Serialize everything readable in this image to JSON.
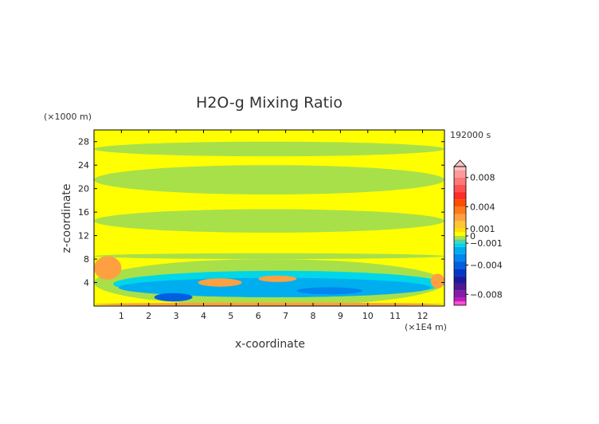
{
  "chart_data": {
    "type": "heatmap",
    "title": "H2O-g Mixing Ratio",
    "time_label": "192000 s",
    "xlabel": "x-coordinate",
    "ylabel": "z-coordinate",
    "x_unit": "(×1E4 m)",
    "y_unit": "(×1000 m)",
    "xlim": [
      0,
      12.8
    ],
    "ylim": [
      0,
      30
    ],
    "x_ticks": [
      "1",
      "2",
      "3",
      "4",
      "5",
      "6",
      "7",
      "8",
      "9",
      "10",
      "11",
      "12"
    ],
    "y_ticks": [
      "4",
      "8",
      "12",
      "16",
      "20",
      "24",
      "28"
    ],
    "colorbar": {
      "range": [
        -0.0095,
        0.0095
      ],
      "tick_labels": [
        "0.008",
        "0.004",
        "0.001",
        "0",
        "−0.001",
        "−0.004",
        "−0.008"
      ],
      "tick_values": [
        0.008,
        0.004,
        0.001,
        0,
        -0.001,
        -0.004,
        -0.008
      ],
      "levels": [
        {
          "lo": 0.009,
          "hi": 0.0095,
          "color": "#ffc4c4"
        },
        {
          "lo": 0.008,
          "hi": 0.009,
          "color": "#ff9a9a"
        },
        {
          "lo": 0.007,
          "hi": 0.008,
          "color": "#ff7777"
        },
        {
          "lo": 0.006,
          "hi": 0.007,
          "color": "#ff4f4f"
        },
        {
          "lo": 0.005,
          "hi": 0.006,
          "color": "#ff2a2a"
        },
        {
          "lo": 0.004,
          "hi": 0.005,
          "color": "#ff4d00"
        },
        {
          "lo": 0.003,
          "hi": 0.004,
          "color": "#ff7a1a"
        },
        {
          "lo": 0.002,
          "hi": 0.003,
          "color": "#ffa040"
        },
        {
          "lo": 0.001,
          "hi": 0.002,
          "color": "#ffc830"
        },
        {
          "lo": 0.0005,
          "hi": 0.001,
          "color": "#ffe100"
        },
        {
          "lo": 0.0,
          "hi": 0.0005,
          "color": "#ffff00"
        },
        {
          "lo": -0.0005,
          "hi": 0.0,
          "color": "#a8e04a"
        },
        {
          "lo": -0.001,
          "hi": -0.0005,
          "color": "#55d3a0"
        },
        {
          "lo": -0.0015,
          "hi": -0.001,
          "color": "#00d6e8"
        },
        {
          "lo": -0.0025,
          "hi": -0.0015,
          "color": "#00aef0"
        },
        {
          "lo": -0.0035,
          "hi": -0.0025,
          "color": "#0086f0"
        },
        {
          "lo": -0.0045,
          "hi": -0.0035,
          "color": "#005fe0"
        },
        {
          "lo": -0.0055,
          "hi": -0.0045,
          "color": "#0038c8"
        },
        {
          "lo": -0.0065,
          "hi": -0.0055,
          "color": "#1a1aa0"
        },
        {
          "lo": -0.0075,
          "hi": -0.0065,
          "color": "#4b1a90"
        },
        {
          "lo": -0.0085,
          "hi": -0.0075,
          "color": "#8a1aa8"
        },
        {
          "lo": -0.009,
          "hi": -0.0085,
          "color": "#c51ac0"
        },
        {
          "lo": -0.0095,
          "hi": -0.009,
          "color": "#ff4fd0"
        }
      ]
    },
    "base_color": "#ffff00",
    "regions": [
      {
        "x": [
          0,
          12.8
        ],
        "z": [
          25.5,
          28
        ],
        "color": "#a8e04a"
      },
      {
        "x": [
          0,
          12.8
        ],
        "z": [
          19,
          24
        ],
        "color": "#a8e04a"
      },
      {
        "x": [
          0,
          12.8
        ],
        "z": [
          12.5,
          16.5
        ],
        "color": "#a8e04a"
      },
      {
        "x": [
          0,
          12.8
        ],
        "z": [
          8,
          9
        ],
        "color": "#a8e04a"
      },
      {
        "x": [
          0,
          12.8
        ],
        "z": [
          0,
          8
        ],
        "color": "#a8e04a"
      },
      {
        "x": [
          0.7,
          12.8
        ],
        "z": [
          1.5,
          6
        ],
        "color": "#00d6e8"
      },
      {
        "x": [
          0.9,
          12.3
        ],
        "z": [
          1.5,
          4.8
        ],
        "color": "#00aef0"
      },
      {
        "x": [
          2.2,
          3.6
        ],
        "z": [
          0.8,
          2.2
        ],
        "color": "#005fe0"
      },
      {
        "x": [
          7.4,
          9.8
        ],
        "z": [
          2.0,
          3.2
        ],
        "color": "#0086f0"
      },
      {
        "x": [
          3.8,
          5.4
        ],
        "z": [
          3.3,
          4.7
        ],
        "color": "#ffa040"
      },
      {
        "x": [
          6.0,
          7.4
        ],
        "z": [
          4.1,
          5.2
        ],
        "color": "#ffa040"
      },
      {
        "x": [
          0,
          1.0
        ],
        "z": [
          4.5,
          8.5
        ],
        "color": "#ffa040"
      },
      {
        "x": [
          12.3,
          12.8
        ],
        "z": [
          3.0,
          5.5
        ],
        "color": "#ffa040"
      },
      {
        "x": [
          0,
          12.8
        ],
        "z": [
          0,
          0.6
        ],
        "color": "#ffa040"
      }
    ]
  }
}
